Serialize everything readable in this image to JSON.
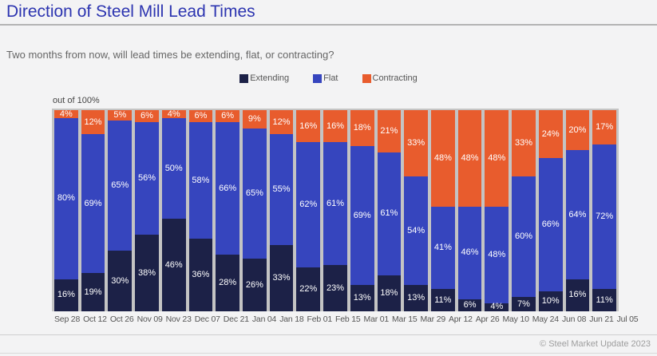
{
  "page": {
    "title": "Direction of Steel Mill Lead Times",
    "subtitle": "Two months from now, will lead times be extending, flat, or contracting?",
    "axis_note": "out of 100%",
    "footer": "© Steel Market Update 2023"
  },
  "colors": {
    "title": "#2c34b0",
    "extending": "#1c2147",
    "flat": "#3645be",
    "contracting": "#e85c2d",
    "plot_background": "#c4c4c4",
    "page_background": "#f3f3f4"
  },
  "chart_data": {
    "type": "bar",
    "stacked": true,
    "unit": "%",
    "title": "Direction of Steel Mill Lead Times",
    "xlabel": "",
    "ylabel": "out of 100%",
    "ylim": [
      0,
      100
    ],
    "grid": false,
    "legend_position": "top-center",
    "categories": [
      "Sep 28",
      "Oct 12",
      "Oct 26",
      "Nov 09",
      "Nov 23",
      "Dec 07",
      "Dec 21",
      "Jan 04",
      "Jan 18",
      "Feb 01",
      "Feb 15",
      "Mar 01",
      "Mar 15",
      "Mar 29",
      "Apr 12",
      "Apr 26",
      "May 10",
      "May 24",
      "Jun 08",
      "Jun 21",
      "Jul 05"
    ],
    "series": [
      {
        "name": "Extending",
        "color": "#1c2147",
        "values": [
          16,
          19,
          30,
          38,
          46,
          36,
          28,
          26,
          33,
          22,
          23,
          13,
          18,
          13,
          11,
          6,
          4,
          7,
          10,
          16,
          11
        ]
      },
      {
        "name": "Flat",
        "color": "#3645be",
        "values": [
          80,
          69,
          65,
          56,
          50,
          58,
          66,
          65,
          55,
          62,
          61,
          69,
          61,
          54,
          41,
          46,
          48,
          60,
          66,
          64,
          72
        ]
      },
      {
        "name": "Contracting",
        "color": "#e85c2d",
        "values": [
          4,
          12,
          5,
          6,
          4,
          6,
          6,
          9,
          12,
          16,
          16,
          18,
          21,
          33,
          48,
          48,
          48,
          33,
          24,
          20,
          17
        ]
      }
    ]
  }
}
